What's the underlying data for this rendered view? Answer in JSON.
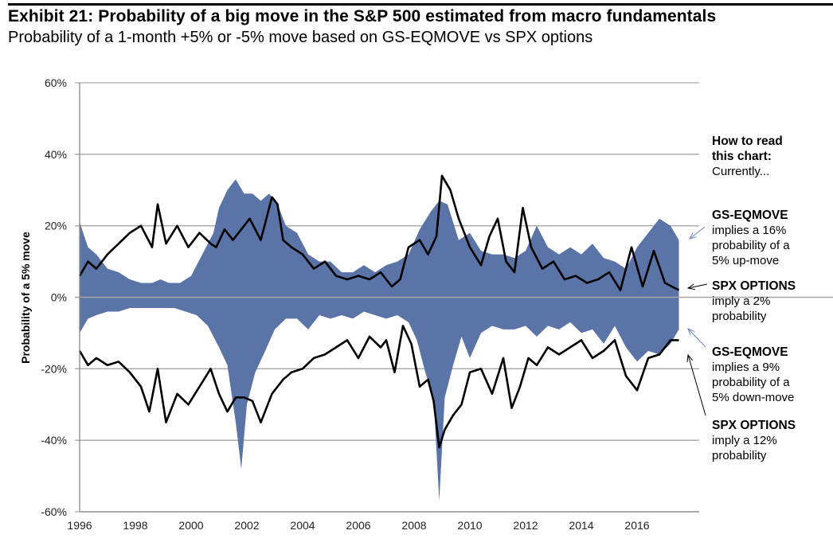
{
  "header": {
    "title": "Exhibit 21: Probability of a big move in the S&P 500 estimated from macro fundamentals",
    "subtitle": "Probability of a 1-month +5% or -5% move based on GS-EQMOVE vs SPX options"
  },
  "annotations": {
    "how_to_read_1": "How to read",
    "how_to_read_2": "this chart:",
    "currently": "Currently...",
    "up_gs_title": "GS-EQMOVE",
    "up_gs_l1": "implies a 16%",
    "up_gs_l2": "probability of a",
    "up_gs_l3": "5% up-move",
    "up_spx_title": "SPX OPTIONS",
    "up_spx_l1": "imply a 2%",
    "up_spx_l2": "probability",
    "down_gs_title": "GS-EQMOVE",
    "down_gs_l1": "implies a 9%",
    "down_gs_l2": "probability of a",
    "down_gs_l3": "5% down-move",
    "down_spx_title": "SPX OPTIONS",
    "down_spx_l1": "imply a 12%",
    "down_spx_l2": "probability"
  },
  "chart_data": {
    "type": "area",
    "title": "Exhibit 21: Probability of a big move in the S&P 500 estimated from macro fundamentals",
    "subtitle": "Probability of a 1-month +5% or -5% move based on GS-EQMOVE vs SPX options",
    "xlabel": "",
    "ylabel": "Probability of a 5% move",
    "xlim": [
      1996,
      2017.6
    ],
    "ylim": [
      -60,
      60
    ],
    "x_ticks": [
      "1996",
      "1998",
      "2000",
      "2002",
      "2004",
      "2006",
      "2008",
      "2010",
      "2012",
      "2014",
      "2016"
    ],
    "y_ticks": [
      "60%",
      "40%",
      "20%",
      "0%",
      "-20%",
      "-40%",
      "-60%"
    ],
    "y_tick_values": [
      60,
      40,
      20,
      0,
      -20,
      -40,
      -60
    ],
    "grid": "horizontal",
    "colors": {
      "area": "#5B74A8",
      "line": "#000000",
      "grid": "#A6A6A6"
    },
    "series": [
      {
        "name": "GS-EQMOVE up-move probability (area)",
        "x": [
          1996.0,
          1996.3,
          1996.6,
          1997.0,
          1997.4,
          1997.8,
          1998.2,
          1998.6,
          1998.9,
          1999.2,
          1999.6,
          2000.0,
          2000.4,
          2000.8,
          2001.0,
          2001.3,
          2001.6,
          2001.9,
          2002.2,
          2002.5,
          2002.8,
          2003.1,
          2003.4,
          2003.8,
          2004.2,
          2004.6,
          2005.0,
          2005.4,
          2005.8,
          2006.2,
          2006.6,
          2007.0,
          2007.4,
          2007.8,
          2008.2,
          2008.6,
          2008.9,
          2009.2,
          2009.6,
          2010.0,
          2010.4,
          2010.8,
          2011.2,
          2011.6,
          2012.0,
          2012.4,
          2012.8,
          2013.2,
          2013.6,
          2014.0,
          2014.4,
          2014.8,
          2015.2,
          2015.6,
          2016.0,
          2016.4,
          2016.8,
          2017.2,
          2017.5
        ],
        "values": [
          21,
          14,
          12,
          8,
          7,
          5,
          4,
          4,
          5,
          4,
          4,
          6,
          12,
          18,
          25,
          30,
          33,
          29,
          29,
          27,
          29,
          26,
          20,
          18,
          12,
          10,
          10,
          7,
          7,
          9,
          7,
          9,
          10,
          12,
          19,
          24,
          27,
          26,
          16,
          18,
          13,
          12,
          12,
          11,
          13,
          20,
          14,
          12,
          14,
          12,
          15,
          11,
          10,
          8,
          14,
          18,
          22,
          20,
          16
        ]
      },
      {
        "name": "SPX options up-move probability (line)",
        "x": [
          1996.0,
          1996.3,
          1996.6,
          1997.0,
          1997.4,
          1997.8,
          1998.2,
          1998.6,
          1998.8,
          1999.1,
          1999.5,
          1999.9,
          2000.3,
          2000.7,
          2000.9,
          2001.2,
          2001.5,
          2001.8,
          2002.1,
          2002.5,
          2002.9,
          2003.1,
          2003.3,
          2003.6,
          2004.0,
          2004.4,
          2004.8,
          2005.2,
          2005.6,
          2006.0,
          2006.4,
          2006.8,
          2007.2,
          2007.5,
          2007.8,
          2008.2,
          2008.5,
          2008.8,
          2009.0,
          2009.3,
          2009.6,
          2010.0,
          2010.4,
          2010.7,
          2011.0,
          2011.3,
          2011.6,
          2011.9,
          2012.2,
          2012.6,
          2013.0,
          2013.4,
          2013.8,
          2014.2,
          2014.6,
          2015.0,
          2015.4,
          2015.8,
          2016.2,
          2016.6,
          2017.0,
          2017.5
        ],
        "values": [
          6,
          10,
          8,
          12,
          15,
          18,
          20,
          14,
          26,
          15,
          20,
          14,
          18,
          15,
          14,
          19,
          16,
          19,
          22,
          16,
          28,
          26,
          16,
          14,
          12,
          8,
          10,
          6,
          5,
          6,
          5,
          7,
          3,
          5,
          14,
          16,
          12,
          17,
          34,
          30,
          22,
          14,
          9,
          17,
          22,
          10,
          7,
          25,
          14,
          8,
          10,
          5,
          6,
          4,
          5,
          7,
          2,
          14,
          3,
          13,
          4,
          2
        ]
      },
      {
        "name": "GS-EQMOVE down-move probability (area)",
        "x": [
          1996.0,
          1996.3,
          1996.6,
          1997.0,
          1997.4,
          1997.8,
          1998.2,
          1998.6,
          1999.0,
          1999.4,
          1999.8,
          2000.2,
          2000.6,
          2001.0,
          2001.3,
          2001.6,
          2001.8,
          2002.0,
          2002.3,
          2002.6,
          2003.0,
          2003.4,
          2003.8,
          2004.2,
          2004.6,
          2005.0,
          2005.4,
          2005.8,
          2006.2,
          2006.6,
          2007.0,
          2007.4,
          2007.8,
          2008.1,
          2008.4,
          2008.7,
          2008.9,
          2009.1,
          2009.4,
          2009.7,
          2010.0,
          2010.4,
          2010.8,
          2011.2,
          2011.6,
          2012.0,
          2012.4,
          2012.8,
          2013.2,
          2013.6,
          2014.0,
          2014.4,
          2014.8,
          2015.2,
          2015.6,
          2016.0,
          2016.4,
          2016.8,
          2017.2,
          2017.5
        ],
        "values": [
          -10,
          -6,
          -5,
          -4,
          -4,
          -3,
          -3,
          -3,
          -3,
          -3,
          -4,
          -5,
          -8,
          -14,
          -19,
          -35,
          -48,
          -30,
          -21,
          -16,
          -9,
          -6,
          -6,
          -9,
          -5,
          -6,
          -5,
          -6,
          -4,
          -5,
          -6,
          -5,
          -7,
          -12,
          -21,
          -28,
          -57,
          -28,
          -19,
          -11,
          -17,
          -10,
          -8,
          -9,
          -9,
          -8,
          -11,
          -8,
          -9,
          -7,
          -10,
          -9,
          -13,
          -8,
          -14,
          -18,
          -15,
          -16,
          -13,
          -9
        ]
      },
      {
        "name": "SPX options down-move probability (line)",
        "x": [
          1996.0,
          1996.3,
          1996.6,
          1997.0,
          1997.4,
          1997.8,
          1998.2,
          1998.5,
          1998.8,
          1999.1,
          1999.5,
          1999.9,
          2000.3,
          2000.7,
          2001.0,
          2001.3,
          2001.6,
          2001.9,
          2002.2,
          2002.5,
          2002.9,
          2003.3,
          2003.6,
          2004.0,
          2004.4,
          2004.8,
          2005.2,
          2005.6,
          2006.0,
          2006.4,
          2006.8,
          2007.0,
          2007.3,
          2007.6,
          2007.9,
          2008.2,
          2008.5,
          2008.7,
          2008.9,
          2009.1,
          2009.4,
          2009.7,
          2010.0,
          2010.4,
          2010.8,
          2011.2,
          2011.5,
          2011.8,
          2012.1,
          2012.4,
          2012.8,
          2013.2,
          2013.6,
          2014.0,
          2014.4,
          2014.8,
          2015.2,
          2015.6,
          2016.0,
          2016.4,
          2016.8,
          2017.2,
          2017.5
        ],
        "values": [
          -15,
          -19,
          -17,
          -19,
          -18,
          -21,
          -25,
          -32,
          -20,
          -35,
          -27,
          -30,
          -25,
          -20,
          -27,
          -32,
          -28,
          -28,
          -29,
          -35,
          -27,
          -23,
          -21,
          -20,
          -17,
          -16,
          -14,
          -12,
          -17,
          -11,
          -14,
          -12,
          -21,
          -8,
          -13,
          -25,
          -23,
          -29,
          -42,
          -37,
          -33,
          -30,
          -21,
          -20,
          -27,
          -17,
          -31,
          -25,
          -17,
          -19,
          -14,
          -16,
          -14,
          -12,
          -17,
          -15,
          -12,
          -22,
          -26,
          -17,
          -16,
          -12,
          -12
        ]
      }
    ]
  }
}
